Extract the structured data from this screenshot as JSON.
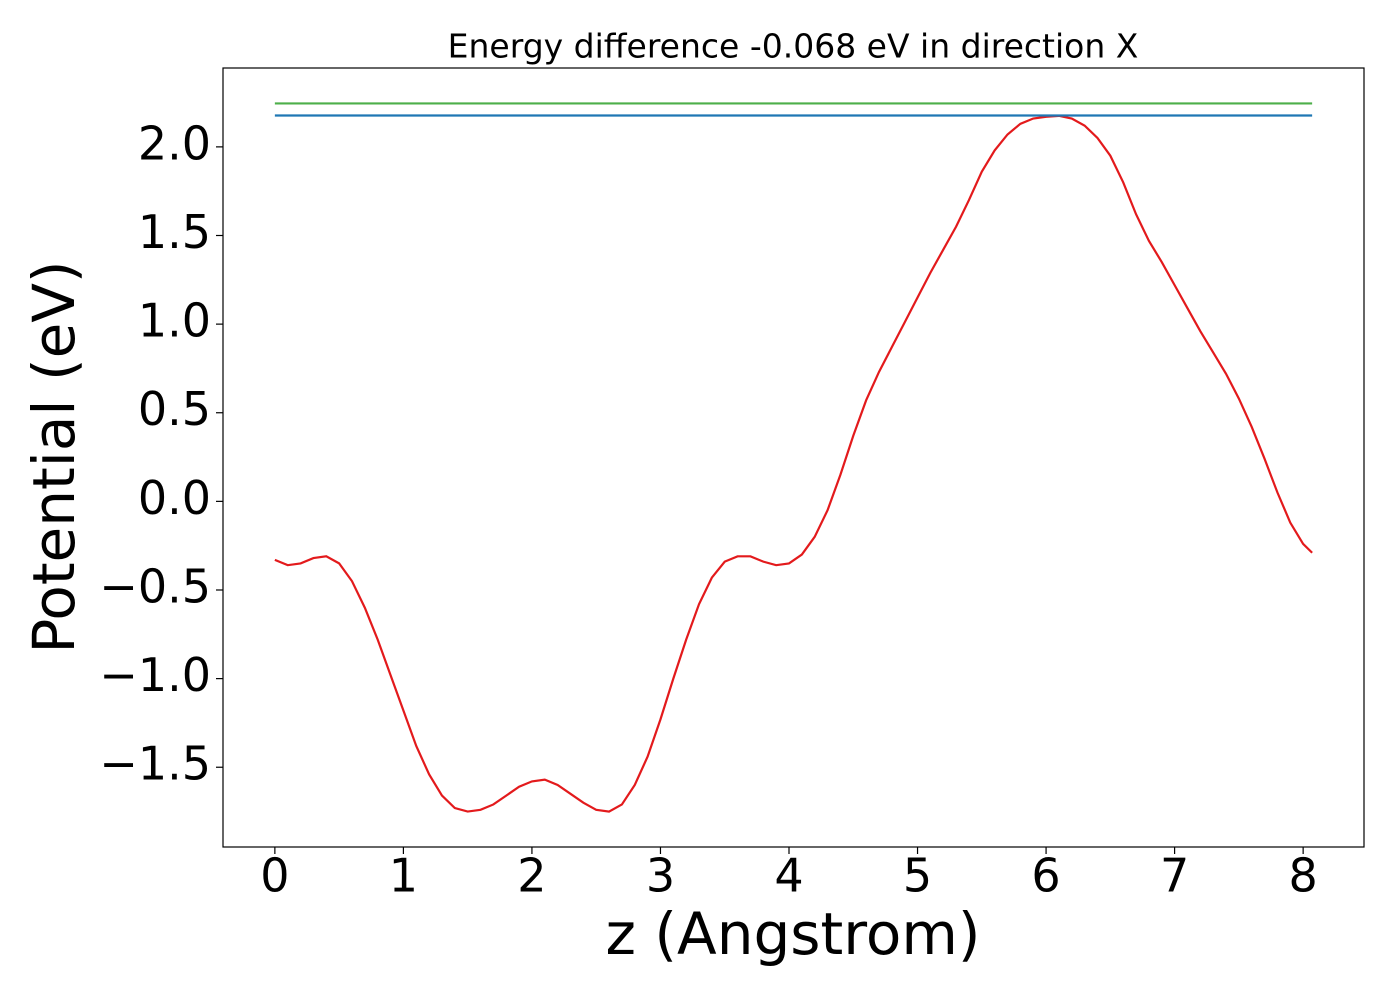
{
  "chart_data": {
    "type": "line",
    "title": "Energy difference -0.068 eV in direction X",
    "xlabel": "z (Angstrom)",
    "ylabel": "Potential (eV)",
    "xlim": [
      -0.4035,
      8.4735
    ],
    "ylim": [
      -1.95,
      2.445
    ],
    "xticks": [
      0,
      1,
      2,
      3,
      4,
      5,
      6,
      7,
      8
    ],
    "yticks": [
      {
        "value": -1.5,
        "label": "−1.5"
      },
      {
        "value": -1.0,
        "label": "−1.0"
      },
      {
        "value": -0.5,
        "label": "−0.5"
      },
      {
        "value": 0,
        "label": "0.0"
      },
      0.5,
      {
        "value": 1.0,
        "label": "1.0"
      },
      1.5,
      {
        "value": 2.0,
        "label": "2.0"
      }
    ],
    "series": [
      {
        "color": "#e31a1c",
        "x": [
          0,
          0.1,
          0.2,
          0.3,
          0.4,
          0.5,
          0.6,
          0.7,
          0.8,
          0.9,
          1.0,
          1.1,
          1.2,
          1.3,
          1.4,
          1.5,
          1.6,
          1.7,
          1.8,
          1.9,
          2.0,
          2.1,
          2.2,
          2.3,
          2.4,
          2.5,
          2.6,
          2.7,
          2.8,
          2.9,
          3.0,
          3.1,
          3.2,
          3.3,
          3.4,
          3.5,
          3.6,
          3.7,
          3.8,
          3.9,
          4.0,
          4.1,
          4.2,
          4.3,
          4.4,
          4.5,
          4.6,
          4.7,
          4.8,
          4.9,
          5.0,
          5.1,
          5.2,
          5.3,
          5.4,
          5.5,
          5.6,
          5.7,
          5.8,
          5.9,
          6.0,
          6.1,
          6.2,
          6.3,
          6.4,
          6.5,
          6.6,
          6.7,
          6.8,
          6.9,
          7.0,
          7.1,
          7.2,
          7.3,
          7.4,
          7.5,
          7.6,
          7.7,
          7.8,
          7.9,
          8.0,
          8.07
        ],
        "values": [
          -0.33,
          -0.36,
          -0.35,
          -0.32,
          -0.31,
          -0.35,
          -0.45,
          -0.6,
          -0.78,
          -0.98,
          -1.18,
          -1.38,
          -1.54,
          -1.66,
          -1.73,
          -1.75,
          -1.74,
          -1.71,
          -1.66,
          -1.61,
          -1.58,
          -1.57,
          -1.6,
          -1.65,
          -1.7,
          -1.74,
          -1.75,
          -1.71,
          -1.6,
          -1.44,
          -1.23,
          -1.0,
          -0.78,
          -0.58,
          -0.43,
          -0.34,
          -0.31,
          -0.31,
          -0.34,
          -0.36,
          -0.35,
          -0.3,
          -0.2,
          -0.05,
          0.15,
          0.37,
          0.57,
          0.73,
          0.87,
          1.01,
          1.15,
          1.29,
          1.42,
          1.55,
          1.7,
          1.86,
          1.98,
          2.07,
          2.13,
          2.16,
          2.17,
          2.175,
          2.16,
          2.12,
          2.05,
          1.95,
          1.8,
          1.62,
          1.47,
          1.35,
          1.22,
          1.09,
          0.96,
          0.84,
          0.72,
          0.58,
          0.42,
          0.24,
          0.05,
          -0.12,
          -0.24,
          -0.29
        ]
      },
      {
        "color": "#4daf4a",
        "x": [
          0,
          8.07
        ],
        "values": [
          2.245,
          2.245
        ]
      },
      {
        "color": "#1f77b4",
        "x": [
          0,
          8.07
        ],
        "values": [
          2.177,
          2.177
        ]
      }
    ]
  }
}
